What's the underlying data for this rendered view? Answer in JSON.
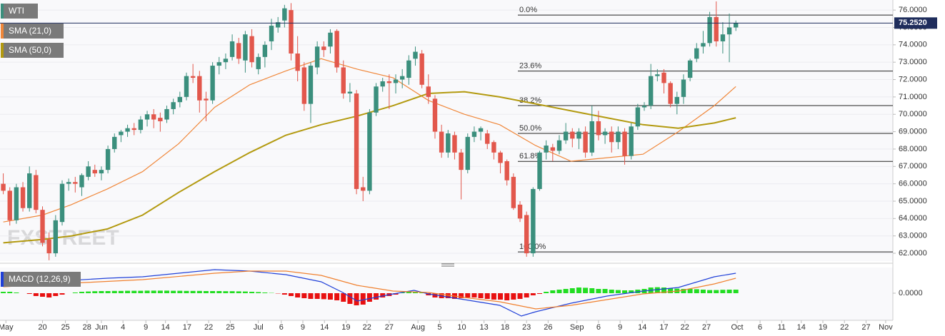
{
  "chart_data": {
    "type": "candlestick",
    "symbol": "WTI",
    "watermark": "FXSTREET",
    "up_color": "#3b8f7d",
    "down_color": "#e2574c",
    "grid": true,
    "xlim": [
      -0.5,
      136
    ],
    "ylim": [
      61.55,
      76.58
    ],
    "yticks": [
      {
        "value": 62,
        "label": "62.0000"
      },
      {
        "value": 63,
        "label": "63.0000"
      },
      {
        "value": 64,
        "label": "64.0000"
      },
      {
        "value": 65,
        "label": "65.0000"
      },
      {
        "value": 66,
        "label": "66.0000"
      },
      {
        "value": 67,
        "label": "67.0000"
      },
      {
        "value": 68,
        "label": "68.0000"
      },
      {
        "value": 69,
        "label": "69.0000"
      },
      {
        "value": 70,
        "label": "70.0000"
      },
      {
        "value": 71,
        "label": "71.0000"
      },
      {
        "value": 72,
        "label": "72.0000"
      },
      {
        "value": 73,
        "label": "73.0000"
      },
      {
        "value": 74,
        "label": "74.0000"
      },
      {
        "value": 75,
        "label": "75.0000"
      },
      {
        "value": 76,
        "label": "76.0000"
      }
    ],
    "xticks": [
      {
        "value": 0.4,
        "label": "May"
      },
      {
        "value": 6.0,
        "label": "20"
      },
      {
        "value": 9.5,
        "label": "25"
      },
      {
        "value": 12.8,
        "label": "28"
      },
      {
        "value": 15.0,
        "label": "Jun"
      },
      {
        "value": 18.3,
        "label": "4"
      },
      {
        "value": 21.8,
        "label": "9"
      },
      {
        "value": 24.8,
        "label": "14"
      },
      {
        "value": 28.1,
        "label": "17"
      },
      {
        "value": 31.4,
        "label": "22"
      },
      {
        "value": 34.7,
        "label": "25"
      },
      {
        "value": 39.0,
        "label": "Jul"
      },
      {
        "value": 42.5,
        "label": "6"
      },
      {
        "value": 45.8,
        "label": "9"
      },
      {
        "value": 49.1,
        "label": "14"
      },
      {
        "value": 52.4,
        "label": "19"
      },
      {
        "value": 55.6,
        "label": "22"
      },
      {
        "value": 59.0,
        "label": "27"
      },
      {
        "value": 63.4,
        "label": "Aug"
      },
      {
        "value": 66.7,
        "label": "5"
      },
      {
        "value": 70.1,
        "label": "10"
      },
      {
        "value": 73.5,
        "label": "13"
      },
      {
        "value": 76.7,
        "label": "18"
      },
      {
        "value": 80.0,
        "label": "23"
      },
      {
        "value": 83.3,
        "label": "26"
      },
      {
        "value": 87.7,
        "label": "Sep"
      },
      {
        "value": 91.0,
        "label": "6"
      },
      {
        "value": 94.3,
        "label": "9"
      },
      {
        "value": 97.7,
        "label": "14"
      },
      {
        "value": 101.0,
        "label": "17"
      },
      {
        "value": 104.2,
        "label": "22"
      },
      {
        "value": 107.5,
        "label": "27"
      },
      {
        "value": 112.2,
        "label": "Oct"
      },
      {
        "value": 115.7,
        "label": "6"
      },
      {
        "value": 119.0,
        "label": "11"
      },
      {
        "value": 122.0,
        "label": "14"
      },
      {
        "value": 125.3,
        "label": "19"
      },
      {
        "value": 128.6,
        "label": "22"
      },
      {
        "value": 131.9,
        "label": "27"
      },
      {
        "value": 134.9,
        "label": "Nov"
      }
    ],
    "x": [
      0,
      1,
      2,
      3,
      4,
      5,
      6,
      7,
      8,
      9,
      10,
      11,
      12,
      13,
      14,
      15,
      16,
      17,
      18,
      19,
      20,
      21,
      22,
      23,
      24,
      25,
      26,
      27,
      28,
      29,
      30,
      31,
      32,
      33,
      34,
      35,
      36,
      37,
      38,
      39,
      40,
      41,
      42,
      43,
      44,
      45,
      46,
      47,
      48,
      49,
      50,
      51,
      52,
      53,
      54,
      55,
      56,
      57,
      58,
      59,
      60,
      61,
      62,
      63,
      64,
      65,
      66,
      67,
      68,
      69,
      70,
      71,
      72,
      73,
      74,
      75,
      76,
      77,
      78,
      79,
      80,
      81,
      82,
      83,
      84,
      85,
      86,
      87,
      88,
      89,
      90,
      91,
      92,
      93,
      94,
      95,
      96,
      97,
      98,
      99,
      100,
      101,
      102,
      103,
      104,
      105,
      106,
      107,
      108,
      109,
      110,
      111,
      112
    ],
    "open": [
      66.0,
      65.6,
      63.9,
      65.8,
      64.6,
      66.5,
      64.5,
      62.8,
      62.0,
      63.8,
      66.0,
      66.1,
      65.8,
      66.4,
      66.8,
      66.6,
      66.8,
      68.0,
      68.8,
      69.0,
      69.2,
      69.1,
      69.7,
      70.0,
      69.8,
      69.7,
      70.3,
      70.7,
      71.0,
      72.2,
      72.2,
      70.9,
      70.8,
      72.8,
      73.0,
      73.3,
      74.1,
      73.1,
      74.5,
      72.6,
      73.3,
      74.2,
      75.0,
      75.4,
      76.0,
      73.5,
      72.7,
      70.6,
      72.7,
      73.9,
      73.9,
      74.8,
      72.7,
      71.2,
      71.2,
      65.8,
      65.6,
      70.1,
      71.6,
      71.9,
      71.8,
      72.0,
      72.1,
      73.2,
      73.5,
      71.6,
      70.9,
      69.0,
      67.8,
      68.8,
      67.8,
      66.8,
      68.7,
      69.0,
      68.9,
      68.4,
      67.8,
      67.3,
      66.4,
      64.8,
      64.2,
      62.0,
      65.7,
      67.8,
      68.1,
      67.9,
      68.5,
      69.0,
      68.6,
      69.0,
      67.8,
      69.6,
      68.8,
      69.0,
      68.4,
      69.0,
      67.6,
      69.3,
      70.4,
      70.5,
      72.2,
      72.4,
      71.8,
      70.6,
      71.0,
      72.1,
      73.2,
      73.9,
      74.1,
      75.6,
      74.2,
      74.6,
      75.0
    ],
    "high": [
      66.6,
      65.8,
      66.0,
      66.1,
      67.0,
      66.8,
      64.7,
      63.2,
      64.2,
      66.2,
      66.3,
      66.4,
      66.6,
      67.3,
      67.1,
      67.0,
      68.2,
      68.9,
      69.1,
      69.4,
      69.5,
      69.9,
      70.2,
      70.3,
      70.1,
      70.5,
      70.9,
      71.3,
      72.4,
      72.9,
      72.5,
      71.3,
      73.0,
      73.3,
      73.5,
      74.6,
      74.4,
      74.8,
      74.9,
      73.5,
      74.2,
      75.5,
      75.6,
      76.3,
      76.4,
      74.5,
      73.0,
      73.0,
      74.2,
      74.2,
      74.9,
      74.9,
      73.1,
      71.8,
      71.4,
      66.4,
      70.3,
      71.8,
      72.1,
      72.3,
      72.3,
      72.6,
      73.4,
      73.9,
      73.7,
      72.3,
      71.1,
      69.4,
      69.1,
      69.0,
      68.0,
      68.9,
      69.3,
      69.3,
      69.1,
      68.5,
      67.9,
      67.4,
      66.6,
      65.0,
      64.4,
      65.8,
      67.9,
      68.5,
      68.3,
      68.8,
      69.5,
      69.2,
      69.2,
      69.3,
      70.5,
      70.2,
      69.2,
      69.3,
      69.3,
      69.2,
      69.5,
      70.6,
      70.7,
      72.9,
      72.6,
      72.6,
      71.9,
      71.3,
      72.3,
      73.2,
      74.1,
      74.8,
      75.9,
      76.5,
      75.3,
      75.8,
      75.4
    ],
    "low": [
      65.4,
      63.6,
      63.7,
      64.4,
      64.4,
      64.3,
      62.4,
      61.6,
      61.8,
      63.6,
      65.6,
      65.5,
      65.3,
      66.2,
      66.4,
      66.2,
      66.6,
      67.8,
      68.4,
      68.7,
      68.8,
      68.9,
      69.3,
      69.2,
      69.0,
      69.5,
      70.0,
      70.4,
      70.8,
      71.8,
      70.1,
      69.6,
      70.6,
      72.3,
      72.6,
      73.1,
      72.9,
      72.4,
      72.7,
      72.3,
      72.7,
      73.7,
      74.7,
      75.0,
      73.1,
      71.9,
      70.2,
      69.5,
      72.3,
      73.3,
      73.5,
      72.4,
      70.9,
      70.7,
      65.4,
      65.0,
      65.4,
      69.9,
      71.3,
      70.3,
      71.2,
      71.5,
      71.7,
      72.8,
      71.5,
      70.6,
      68.6,
      67.5,
      67.5,
      67.4,
      65.1,
      66.6,
      68.4,
      68.5,
      68.0,
      67.4,
      66.6,
      65.9,
      64.5,
      63.8,
      61.8,
      61.8,
      65.6,
      67.4,
      67.3,
      67.7,
      68.3,
      68.1,
      68.0,
      67.5,
      67.6,
      68.5,
      68.3,
      67.8,
      68.0,
      67.1,
      67.4,
      69.1,
      70.2,
      70.3,
      71.9,
      71.2,
      70.4,
      70.0,
      70.6,
      71.9,
      73.0,
      73.5,
      73.9,
      73.9,
      73.5,
      73.0,
      74.8
    ],
    "close": [
      65.6,
      63.9,
      65.8,
      64.6,
      66.6,
      64.5,
      62.6,
      62.0,
      63.9,
      66.0,
      66.1,
      66.0,
      66.5,
      67.0,
      66.6,
      66.8,
      68.0,
      68.7,
      69.0,
      69.2,
      69.1,
      69.7,
      70.0,
      69.7,
      69.6,
      70.3,
      70.7,
      71.0,
      72.2,
      72.1,
      70.8,
      70.8,
      72.8,
      73.0,
      73.2,
      74.2,
      73.2,
      74.6,
      73.0,
      73.3,
      74.0,
      75.1,
      75.3,
      76.1,
      73.5,
      72.5,
      70.6,
      72.8,
      73.9,
      73.7,
      74.7,
      72.7,
      71.2,
      71.3,
      65.7,
      65.6,
      70.1,
      71.6,
      71.9,
      71.8,
      72.0,
      72.2,
      73.1,
      73.6,
      71.7,
      71.0,
      69.0,
      67.8,
      68.9,
      67.8,
      66.8,
      68.7,
      69.0,
      69.2,
      68.3,
      67.8,
      67.2,
      66.2,
      64.6,
      64.0,
      62.0,
      65.7,
      67.8,
      68.2,
      67.9,
      68.5,
      69.0,
      68.6,
      69.0,
      67.8,
      69.6,
      68.8,
      69.0,
      68.4,
      69.0,
      67.6,
      69.3,
      70.4,
      70.5,
      72.2,
      72.3,
      71.8,
      70.6,
      71.0,
      72.0,
      73.1,
      73.8,
      74.1,
      75.6,
      74.2,
      74.6,
      75.0,
      75.252
    ],
    "overlays": [
      {
        "name": "SMA (21,0)",
        "color": "#f0873a",
        "x": [
          0,
          6.0,
          10.4,
          15.9,
          21.3,
          26.8,
          32.3,
          37.7,
          43.2,
          48.6,
          54.1,
          59.6,
          65.0,
          70.5,
          75.9,
          81.4,
          86.8,
          92.3,
          97.8,
          103.2,
          108.7,
          112.0
        ],
        "values": [
          63.8,
          64.2,
          64.8,
          65.7,
          66.7,
          68.3,
          70.4,
          71.7,
          72.5,
          73.2,
          72.6,
          72.1,
          70.8,
          70.0,
          69.4,
          68.2,
          67.3,
          67.5,
          67.7,
          69.0,
          70.5,
          71.6
        ]
      },
      {
        "name": "SMA (50,0)",
        "color": "#b39a10",
        "x": [
          0,
          6.0,
          10.4,
          15.9,
          21.3,
          26.8,
          32.3,
          37.7,
          43.2,
          48.6,
          54.1,
          59.6,
          65.0,
          70.5,
          75.9,
          81.4,
          86.8,
          92.3,
          97.8,
          103.2,
          108.7,
          112.0
        ],
        "values": [
          62.6,
          62.8,
          63.0,
          63.4,
          64.2,
          65.5,
          66.7,
          67.8,
          68.8,
          69.4,
          69.9,
          70.5,
          71.2,
          71.3,
          71.0,
          70.6,
          70.2,
          69.8,
          69.4,
          69.2,
          69.5,
          69.8
        ]
      }
    ],
    "last_price": {
      "value": 75.252,
      "label": "75.2520"
    },
    "fibonacci": [
      {
        "label": "0.0%",
        "value": 75.71
      },
      {
        "label": "23.6%",
        "value": 72.49
      },
      {
        "label": "38.2%",
        "value": 70.5
      },
      {
        "label": "50.0%",
        "value": 68.9
      },
      {
        "label": "61.8%",
        "value": 67.29
      },
      {
        "label": "100.0%",
        "value": 62.08
      }
    ],
    "macd": {
      "name": "MACD (12,26,9)",
      "color": "#2040d8",
      "ylim": [
        -1.8,
        1.8
      ],
      "yticks": [
        {
          "value": 0,
          "label": "0.0000"
        }
      ],
      "histogram": {
        "up_color": "#22dd22",
        "down_color": "#e81010",
        "values": [
          0.1,
          0.1,
          0.05,
          0,
          -0.05,
          -0.2,
          -0.25,
          -0.3,
          -0.2,
          -0.1,
          0,
          0.05,
          0.1,
          0.12,
          0.14,
          0.15,
          0.15,
          0.16,
          0.16,
          0.17,
          0.17,
          0.17,
          0.18,
          0.18,
          0.18,
          0.18,
          0.17,
          0.17,
          0.16,
          0.16,
          0.16,
          0.15,
          0.15,
          0.15,
          0.14,
          0.14,
          0.13,
          0.12,
          0.1,
          0.08,
          0.05,
          0.02,
          -0.02,
          -0.1,
          -0.2,
          -0.3,
          -0.35,
          -0.4,
          -0.4,
          -0.42,
          -0.45,
          -0.5,
          -0.6,
          -0.75,
          -0.85,
          -0.8,
          -0.6,
          -0.45,
          -0.3,
          -0.2,
          -0.1,
          0.05,
          0.1,
          0.1,
          0.05,
          -0.15,
          -0.3,
          -0.35,
          -0.35,
          -0.4,
          -0.35,
          -0.3,
          -0.3,
          -0.35,
          -0.4,
          -0.45,
          -0.45,
          -0.5,
          -0.45,
          -0.4,
          -0.3,
          -0.15,
          -0.05,
          0.1,
          0.2,
          0.25,
          0.3,
          0.35,
          0.4,
          0.38,
          0.35,
          0.3,
          0.3,
          0.25,
          0.22,
          0.2,
          0.2,
          0.25,
          0.3,
          0.4,
          0.42,
          0.4,
          0.35,
          0.32,
          0.3,
          0.3,
          0.28,
          0.25,
          0.22,
          0.22,
          0.24,
          0.25,
          0.25
        ]
      },
      "lines": [
        {
          "color": "#2040d8",
          "x": [
            0,
            6.0,
            10.4,
            15.9,
            21.3,
            26.8,
            32.3,
            37.7,
            43.2,
            48.6,
            51.9,
            54.1,
            56.3,
            59.6,
            62.8,
            65.0,
            70.5,
            75.9,
            79.2,
            81.4,
            86.8,
            92.3,
            97.8,
            103.2,
            108.7,
            112.0
          ],
          "values": [
            0.55,
            0.7,
            0.9,
            1.05,
            1.15,
            1.4,
            1.65,
            1.55,
            1.3,
            0.8,
            0.05,
            -0.55,
            -0.35,
            -0.05,
            0.2,
            -0.05,
            -0.45,
            -0.85,
            -1.6,
            -1.3,
            -0.7,
            -0.2,
            0.15,
            0.4,
            1.15,
            1.4
          ]
        },
        {
          "color": "#f0802e",
          "x": [
            0,
            10.4,
            21.3,
            32.3,
            37.7,
            43.2,
            48.6,
            54.1,
            59.6,
            65.0,
            70.5,
            75.9,
            81.4,
            86.8,
            92.3,
            97.8,
            103.2,
            108.7,
            112.0
          ],
          "values": [
            0.45,
            0.7,
            0.95,
            1.4,
            1.55,
            1.55,
            1.25,
            0.55,
            0.15,
            0.05,
            -0.3,
            -0.6,
            -1.1,
            -0.85,
            -0.45,
            -0.05,
            0.15,
            0.65,
            1.05
          ]
        }
      ]
    }
  }
}
